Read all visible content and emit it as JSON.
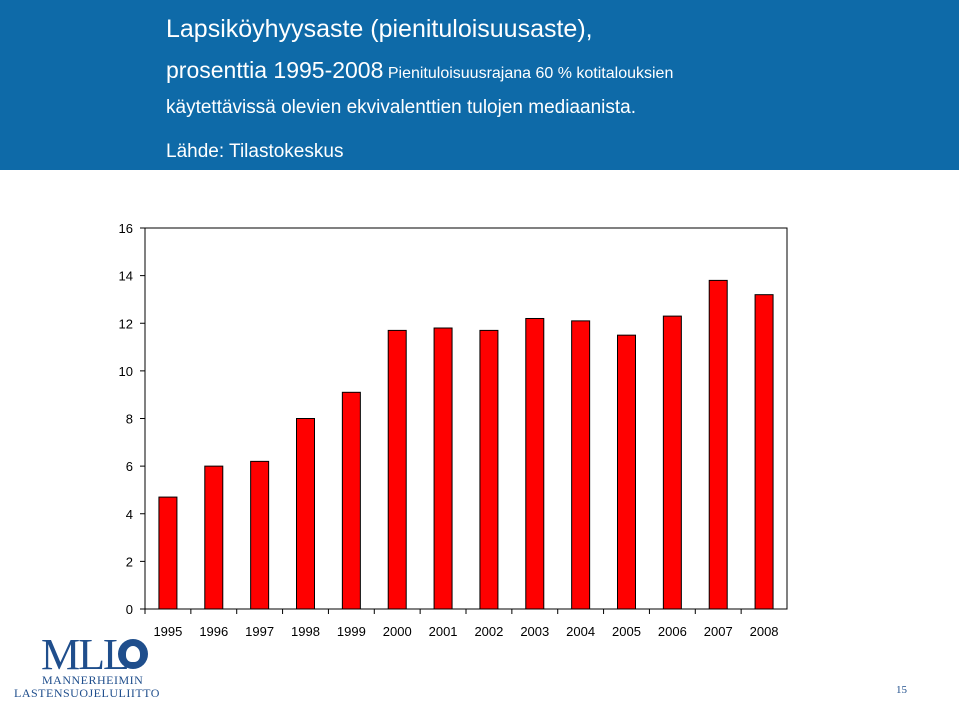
{
  "header": {
    "title_line1": "Lapsiköyhyysaste (pienituloisuusaste),",
    "title_line2_main": "prosenttia 1995-2008",
    "title_line2_note": "Pienituloisuusrajana 60 % kotitalouksien",
    "subtitle": "käytettävissä olevien ekvivalenttien tulojen mediaanista.",
    "source": "Lähde: Tilastokeskus",
    "background_color": "#0e6aa8"
  },
  "chart_data": {
    "type": "bar",
    "categories": [
      "1995",
      "1996",
      "1997",
      "1998",
      "1999",
      "2000",
      "2001",
      "2002",
      "2003",
      "2004",
      "2005",
      "2006",
      "2007",
      "2008"
    ],
    "values": [
      4.7,
      6.0,
      6.2,
      8.0,
      9.1,
      11.7,
      11.8,
      11.7,
      12.2,
      12.1,
      11.5,
      12.3,
      13.8,
      13.2
    ],
    "ylim": [
      0,
      16
    ],
    "yticks": [
      0,
      2,
      4,
      6,
      8,
      10,
      12,
      14,
      16
    ],
    "grid": false,
    "bar_color": "#ff0000"
  },
  "logo": {
    "mark": "MLL",
    "line1": "MANNERHEIMIN",
    "line2": "LASTENSUOJELULIITTO"
  },
  "page_number": "15"
}
